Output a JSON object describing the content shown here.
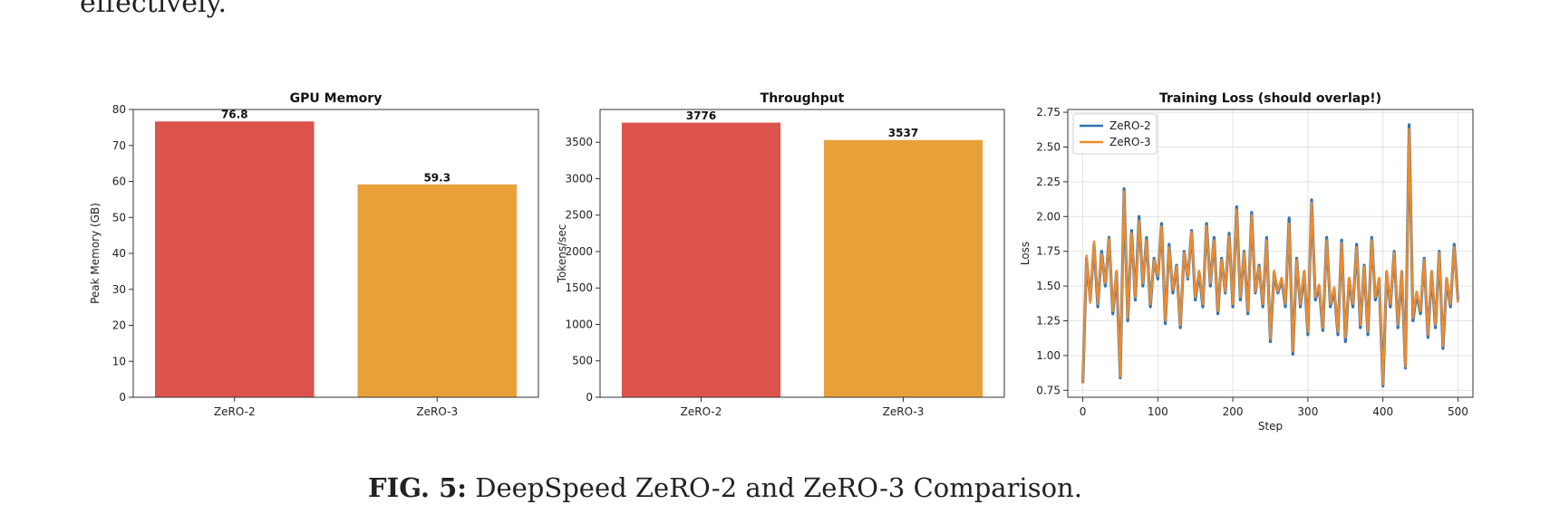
{
  "page": {
    "top_text": "effectively.",
    "caption_label": "FIG. 5:",
    "caption_text": "DeepSpeed ZeRO-2 and ZeRO-3 Comparison."
  },
  "colors": {
    "zero2": "#dc524c",
    "zero3": "#e8a139",
    "line_zero2": "#2f74b4",
    "line_zero3": "#ef8b2c"
  },
  "chart_data": [
    {
      "type": "bar",
      "title": "GPU Memory",
      "xlabel": "",
      "ylabel": "Peak Memory (GB)",
      "categories": [
        "ZeRO-2",
        "ZeRO-3"
      ],
      "values": [
        76.8,
        59.3
      ],
      "value_labels": [
        "76.8",
        "59.3"
      ],
      "ylim": [
        0,
        80
      ],
      "yticks": [
        0,
        10,
        20,
        30,
        40,
        50,
        60,
        70,
        80
      ],
      "ytick_labels": [
        "0",
        "10",
        "20",
        "30",
        "40",
        "50",
        "60",
        "70",
        "80"
      ],
      "grid": false
    },
    {
      "type": "bar",
      "title": "Throughput",
      "xlabel": "",
      "ylabel": "Tokens/sec",
      "categories": [
        "ZeRO-2",
        "ZeRO-3"
      ],
      "values": [
        3776,
        3537
      ],
      "value_labels": [
        "3776",
        "3537"
      ],
      "ylim": [
        0,
        3950
      ],
      "yticks": [
        0,
        500,
        1000,
        1500,
        2000,
        2500,
        3000,
        3500
      ],
      "ytick_labels": [
        "0",
        "500",
        "1000",
        "1500",
        "2000",
        "2500",
        "3000",
        "3500"
      ],
      "grid": false
    },
    {
      "type": "line",
      "title": "Training Loss (should overlap!)",
      "xlabel": "Step",
      "ylabel": "Loss",
      "xlim": [
        -20,
        520
      ],
      "ylim": [
        0.7,
        2.77
      ],
      "xticks": [
        0,
        100,
        200,
        300,
        400,
        500
      ],
      "xtick_labels": [
        "0",
        "100",
        "200",
        "300",
        "400",
        "500"
      ],
      "yticks": [
        0.75,
        1.0,
        1.25,
        1.5,
        1.75,
        2.0,
        2.25,
        2.5,
        2.75
      ],
      "ytick_labels": [
        "0.75",
        "1.00",
        "1.25",
        "1.50",
        "1.75",
        "2.00",
        "2.25",
        "2.50",
        "2.75"
      ],
      "grid": true,
      "legend": "top-left",
      "x": [
        0,
        5,
        10,
        15,
        20,
        25,
        30,
        35,
        40,
        45,
        50,
        55,
        60,
        65,
        70,
        75,
        80,
        85,
        90,
        95,
        100,
        105,
        110,
        115,
        120,
        125,
        130,
        135,
        140,
        145,
        150,
        155,
        160,
        165,
        170,
        175,
        180,
        185,
        190,
        195,
        200,
        205,
        210,
        215,
        220,
        225,
        230,
        235,
        240,
        245,
        250,
        255,
        260,
        265,
        270,
        275,
        280,
        285,
        290,
        295,
        300,
        305,
        310,
        315,
        320,
        325,
        330,
        335,
        340,
        345,
        350,
        355,
        360,
        365,
        370,
        375,
        380,
        385,
        390,
        395,
        400,
        405,
        410,
        415,
        420,
        425,
        430,
        435,
        440,
        445,
        450,
        455,
        460,
        465,
        470,
        475,
        480,
        485,
        490,
        495,
        500
      ],
      "series": [
        {
          "name": "ZeRO-2",
          "values": [
            0.8,
            1.7,
            1.4,
            1.8,
            1.35,
            1.75,
            1.5,
            1.85,
            1.3,
            1.6,
            0.84,
            2.2,
            1.25,
            1.9,
            1.4,
            2.0,
            1.5,
            1.85,
            1.35,
            1.7,
            1.55,
            1.95,
            1.23,
            1.8,
            1.45,
            1.65,
            1.2,
            1.75,
            1.55,
            1.9,
            1.4,
            1.6,
            1.35,
            1.95,
            1.5,
            1.85,
            1.3,
            1.7,
            1.45,
            1.88,
            1.35,
            2.07,
            1.4,
            1.75,
            1.3,
            2.03,
            1.45,
            1.65,
            1.35,
            1.85,
            1.1,
            1.6,
            1.45,
            1.55,
            1.35,
            1.99,
            1.01,
            1.7,
            1.35,
            1.6,
            1.15,
            2.12,
            1.4,
            1.5,
            1.18,
            1.85,
            1.35,
            1.48,
            1.15,
            1.83,
            1.1,
            1.55,
            1.35,
            1.8,
            1.2,
            1.65,
            1.15,
            1.85,
            1.4,
            1.55,
            0.78,
            1.6,
            1.35,
            1.75,
            1.2,
            1.6,
            0.91,
            2.66,
            1.25,
            1.45,
            1.3,
            1.7,
            1.13,
            1.6,
            1.2,
            1.75,
            1.05,
            1.55,
            1.35,
            1.8,
            1.4
          ]
        },
        {
          "name": "ZeRO-3",
          "values": [
            0.8,
            1.72,
            1.38,
            1.82,
            1.37,
            1.73,
            1.52,
            1.84,
            1.32,
            1.61,
            0.85,
            2.18,
            1.27,
            1.88,
            1.42,
            1.97,
            1.52,
            1.83,
            1.37,
            1.69,
            1.57,
            1.93,
            1.25,
            1.78,
            1.47,
            1.64,
            1.22,
            1.74,
            1.56,
            1.89,
            1.42,
            1.61,
            1.37,
            1.93,
            1.52,
            1.83,
            1.32,
            1.69,
            1.46,
            1.86,
            1.37,
            2.05,
            1.42,
            1.74,
            1.32,
            2.01,
            1.46,
            1.64,
            1.37,
            1.83,
            1.12,
            1.61,
            1.46,
            1.56,
            1.37,
            1.95,
            1.03,
            1.69,
            1.37,
            1.61,
            1.17,
            2.1,
            1.42,
            1.51,
            1.2,
            1.83,
            1.37,
            1.49,
            1.17,
            1.81,
            1.13,
            1.56,
            1.37,
            1.78,
            1.22,
            1.64,
            1.17,
            1.83,
            1.42,
            1.56,
            0.79,
            1.61,
            1.37,
            1.74,
            1.22,
            1.61,
            0.92,
            2.63,
            1.27,
            1.46,
            1.32,
            1.69,
            1.15,
            1.61,
            1.22,
            1.74,
            1.07,
            1.56,
            1.37,
            1.78,
            1.38
          ]
        }
      ]
    }
  ]
}
